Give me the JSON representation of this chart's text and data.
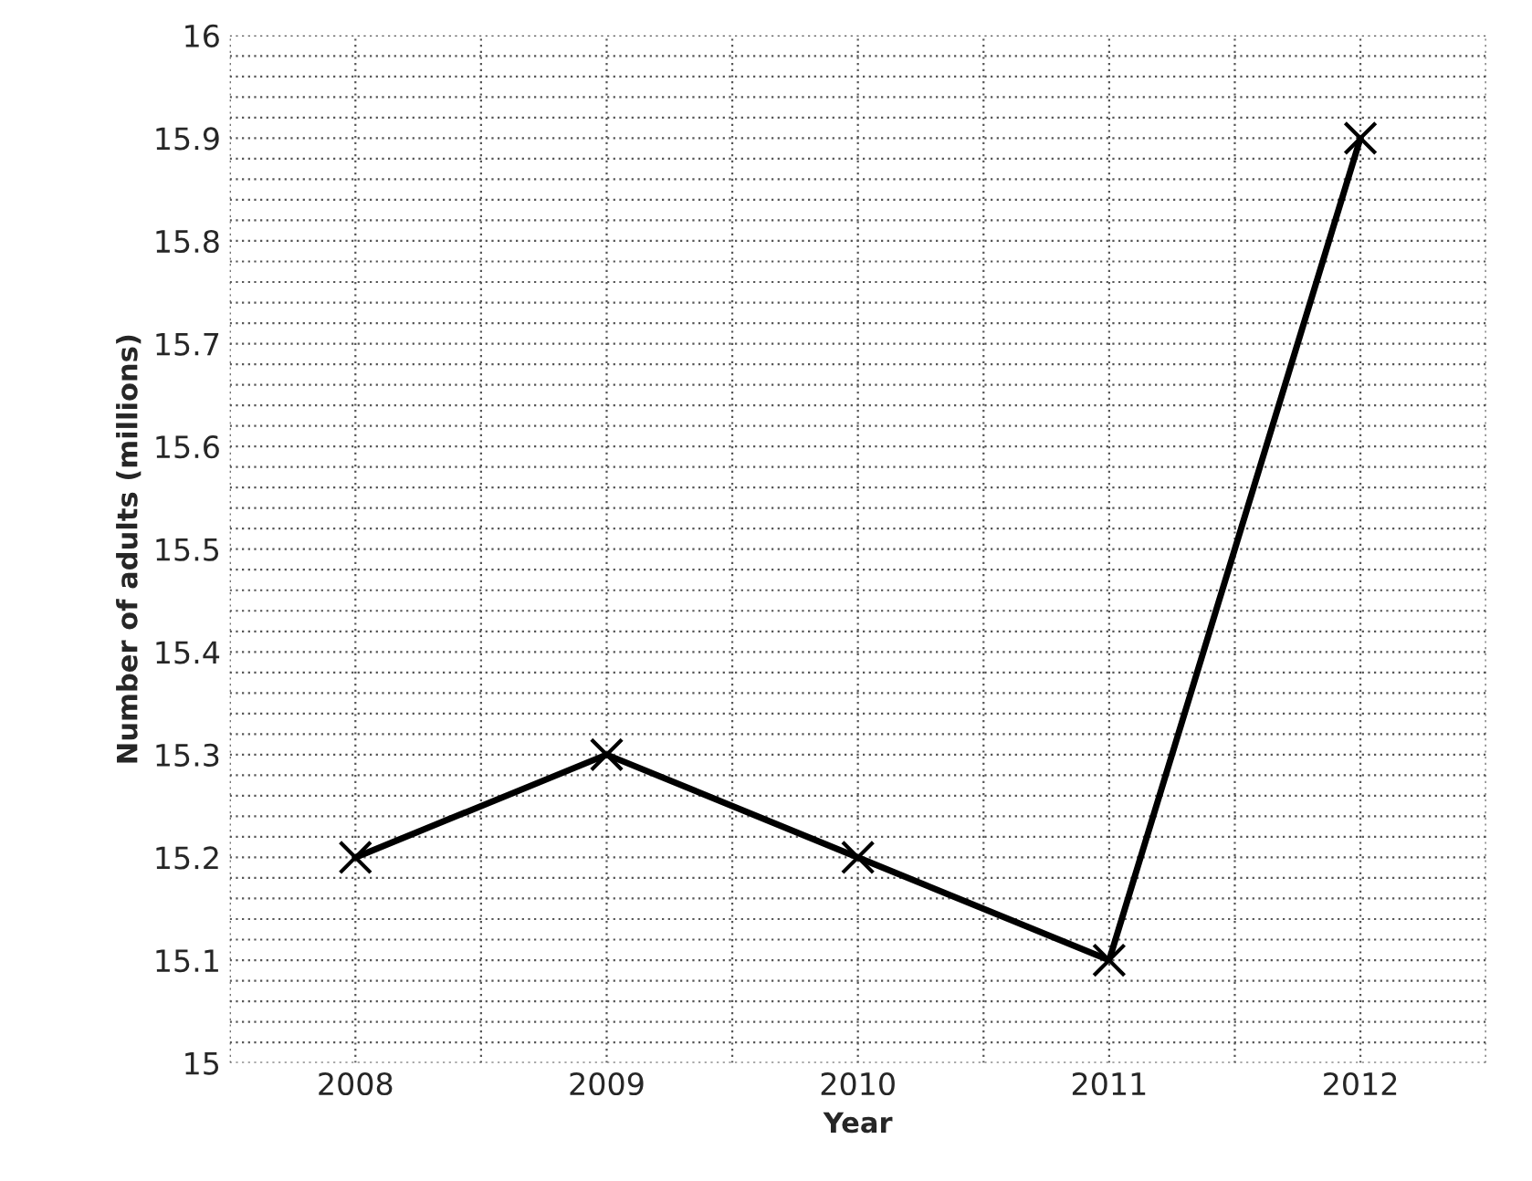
{
  "chart_data": {
    "type": "line",
    "xlabel": "Year",
    "ylabel": "Number of adults (millions)",
    "categories": [
      "2008",
      "2009",
      "2010",
      "2011",
      "2012"
    ],
    "series": [
      {
        "color": "#000000",
        "values": [
          15.2,
          15.3,
          15.2,
          15.1,
          15.9
        ]
      }
    ],
    "ylim": [
      15,
      16
    ],
    "yticks": [
      15,
      15.1,
      15.2,
      15.3,
      15.4,
      15.5,
      15.6,
      15.7,
      15.8,
      15.9,
      16
    ],
    "grid": true,
    "marker": "cross",
    "line_style": "solid"
  }
}
